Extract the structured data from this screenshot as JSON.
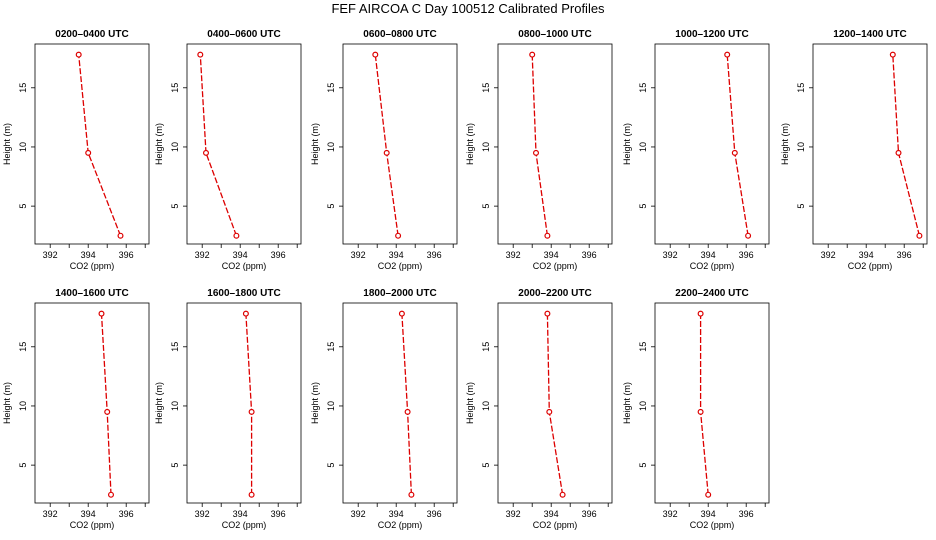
{
  "title": "FEF AIRCOA C  Day 100512  Calibrated Profiles",
  "chart_data": {
    "type": "line",
    "xlabel": "CO2 (ppm)",
    "ylabel": "Height (m)",
    "xlim": [
      391.2,
      397.2
    ],
    "ylim": [
      1.8,
      18.7
    ],
    "xticks": [
      392,
      394,
      396
    ],
    "yticks": [
      5,
      10,
      15
    ],
    "series_color": "#dd0000",
    "heights": [
      2.5,
      9.5,
      17.8
    ],
    "panels": [
      {
        "title": "0200–0400 UTC",
        "x": [
          395.7,
          394.0,
          393.5
        ]
      },
      {
        "title": "0400–0600 UTC",
        "x": [
          393.8,
          392.2,
          391.9
        ]
      },
      {
        "title": "0600–0800 UTC",
        "x": [
          394.1,
          393.5,
          392.9
        ]
      },
      {
        "title": "0800–1000 UTC",
        "x": [
          393.8,
          393.2,
          393.0
        ]
      },
      {
        "title": "1000–1200 UTC",
        "x": [
          396.1,
          395.4,
          395.0
        ]
      },
      {
        "title": "1200–1400 UTC",
        "x": [
          396.8,
          395.7,
          395.4
        ]
      },
      {
        "title": "1400–1600 UTC",
        "x": [
          395.2,
          395.0,
          394.7
        ]
      },
      {
        "title": "1600–1800 UTC",
        "x": [
          394.6,
          394.6,
          394.3
        ]
      },
      {
        "title": "1800–2000 UTC",
        "x": [
          394.8,
          394.6,
          394.3
        ]
      },
      {
        "title": "2000–2200 UTC",
        "x": [
          394.6,
          393.9,
          393.8
        ]
      },
      {
        "title": "2200–2400 UTC",
        "x": [
          394.0,
          393.6,
          393.6
        ]
      }
    ]
  }
}
